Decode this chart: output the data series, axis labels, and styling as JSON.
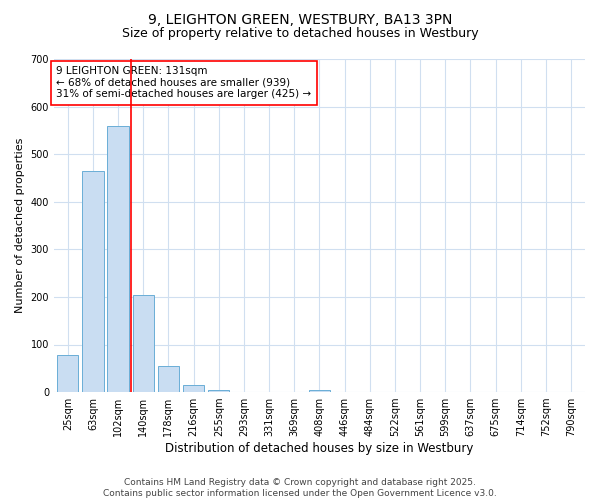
{
  "title": "9, LEIGHTON GREEN, WESTBURY, BA13 3PN",
  "subtitle": "Size of property relative to detached houses in Westbury",
  "xlabel": "Distribution of detached houses by size in Westbury",
  "ylabel": "Number of detached properties",
  "categories": [
    "25sqm",
    "63sqm",
    "102sqm",
    "140sqm",
    "178sqm",
    "216sqm",
    "255sqm",
    "293sqm",
    "331sqm",
    "369sqm",
    "408sqm",
    "446sqm",
    "484sqm",
    "522sqm",
    "561sqm",
    "599sqm",
    "637sqm",
    "675sqm",
    "714sqm",
    "752sqm",
    "790sqm"
  ],
  "values": [
    78,
    465,
    560,
    205,
    55,
    15,
    5,
    0,
    0,
    0,
    5,
    0,
    0,
    0,
    0,
    0,
    0,
    0,
    0,
    0,
    0
  ],
  "bar_color": "#c9ddf2",
  "bar_edge_color": "#6aaed6",
  "red_line_color": "red",
  "annotation_line1": "9 LEIGHTON GREEN: 131sqm",
  "annotation_line2": "← 68% of detached houses are smaller (939)",
  "annotation_line3": "31% of semi-detached houses are larger (425) →",
  "ylim": [
    0,
    700
  ],
  "yticks": [
    0,
    100,
    200,
    300,
    400,
    500,
    600,
    700
  ],
  "bg_color": "#ffffff",
  "plot_bg_color": "#ffffff",
  "grid_color": "#d0dff0",
  "footer": "Contains HM Land Registry data © Crown copyright and database right 2025.\nContains public sector information licensed under the Open Government Licence v3.0.",
  "title_fontsize": 10,
  "subtitle_fontsize": 9,
  "xlabel_fontsize": 8.5,
  "ylabel_fontsize": 8,
  "tick_fontsize": 7,
  "footer_fontsize": 6.5,
  "annotation_fontsize": 7.5
}
